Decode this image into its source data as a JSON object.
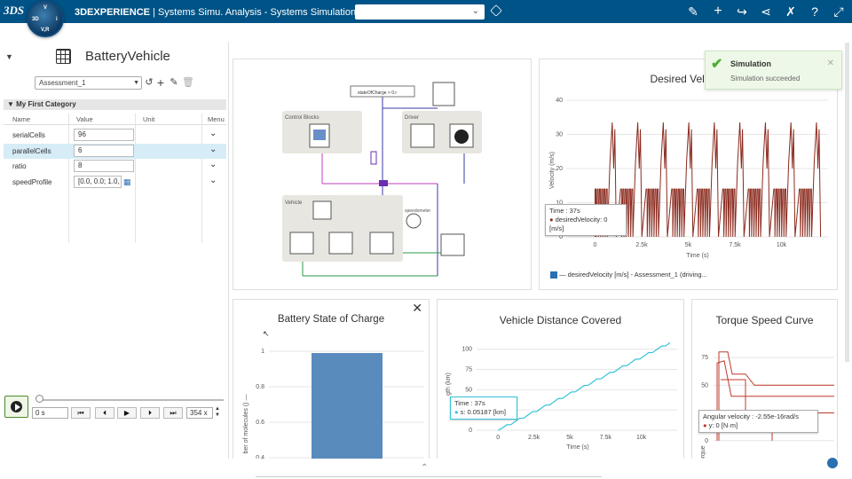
{
  "app": {
    "logo": "3DS",
    "compass": {
      "n": "V",
      "w": "3D",
      "e": "i",
      "s": "V,R"
    },
    "brand": "3DEXPERIENCE",
    "separator": " | ",
    "title": "Systems Simu. Analysis - Systems Simulation ...",
    "search_placeholder": ""
  },
  "left": {
    "model_name": "BatteryVehicle",
    "assessment": "Assessment_1",
    "category": "My First Category",
    "columns": [
      "Name",
      "Value",
      "Unit",
      "Menu"
    ],
    "params": [
      {
        "name": "serialCells",
        "value": "96"
      },
      {
        "name": "parallelCells",
        "value": "6"
      },
      {
        "name": "ratio",
        "value": "8"
      },
      {
        "name": "speedProfile",
        "value": "[0.0, 0.0; 1.0,"
      }
    ],
    "player": {
      "time": "0 s",
      "speed": "354 x"
    }
  },
  "diagram": {
    "control_blocks": "Control Blocks",
    "driver": "Driver",
    "vehicle": "Vehicle",
    "top_block": "stateOfCharge > 0.r",
    "speedo": "speedometer"
  },
  "toast": {
    "title": "Simulation",
    "message": "Simulation succeeded"
  },
  "charts": {
    "velocity": {
      "title": "Desired Velocity",
      "xlabel": "Time (s)",
      "ylabel": "Velocity (m/s) —",
      "legend": "desiredVelocity [m/s] - Assessment_1 (driving...",
      "tooltip_time": "Time : 37s",
      "tooltip_val": "desiredVelocity: 0 [m/s]",
      "color": "#8b2a1e"
    },
    "battery": {
      "title": "Battery State of Charge",
      "ylabel": "ber of molecules () —",
      "color": "#5a8bbd"
    },
    "distance": {
      "title": "Vehicle Distance Covered",
      "xlabel": "Time (s)",
      "ylabel": "gth (km) —",
      "tooltip_time": "Time : 37s",
      "tooltip_val": "s: 0.05187 [km]",
      "color": "#34c3d6"
    },
    "torque": {
      "title": "Torque Speed Curve",
      "ylabel": "Torqu",
      "tooltip_a": "Angular velocity : -2.55e-16rad/s",
      "tooltip_b": "y: 0 [N·m]",
      "color": "#c0392b"
    }
  },
  "chart_data": [
    {
      "type": "line",
      "title": "Desired Velocity",
      "xlabel": "Time (s)",
      "ylabel": "Velocity (m/s)",
      "xlim": [
        -1500,
        12500
      ],
      "ylim": [
        0,
        40
      ],
      "xticks": [
        "0",
        "2.5k",
        "5k",
        "7.5k",
        "10k"
      ],
      "yticks": [
        "0",
        "10",
        "20",
        "30",
        "40"
      ],
      "series": [
        {
          "name": "desiredVelocity [m/s] - Assessment_1 (driving...",
          "cycle_period": 1370,
          "peak": 33.5,
          "plateau": 14
        }
      ]
    },
    {
      "type": "bar",
      "title": "Battery State of Charge",
      "ylabel": "ber of molecules ()",
      "categories": [
        ""
      ],
      "values": [
        0.99
      ],
      "ylim": [
        0.4,
        1.05
      ],
      "yticks": [
        "0.4",
        "0.6",
        "0.8",
        "1"
      ]
    },
    {
      "type": "line",
      "title": "Vehicle Distance Covered",
      "xlabel": "Time (s)",
      "ylabel": "gth (km)",
      "xlim": [
        -1500,
        12500
      ],
      "ylim": [
        0,
        115
      ],
      "xticks": [
        "0",
        "2.5k",
        "5k",
        "7.5k",
        "10k"
      ],
      "yticks": [
        "0",
        "25",
        "50",
        "75",
        "100"
      ],
      "series": [
        {
          "name": "s",
          "x": [
            0,
            12000
          ],
          "y": [
            0,
            108
          ]
        }
      ]
    },
    {
      "type": "line",
      "title": "Torque Speed Curve",
      "ylabel": "Torque",
      "ylim": [
        -5,
        95
      ],
      "yticks": [
        "0",
        "25",
        "50",
        "75"
      ]
    }
  ]
}
